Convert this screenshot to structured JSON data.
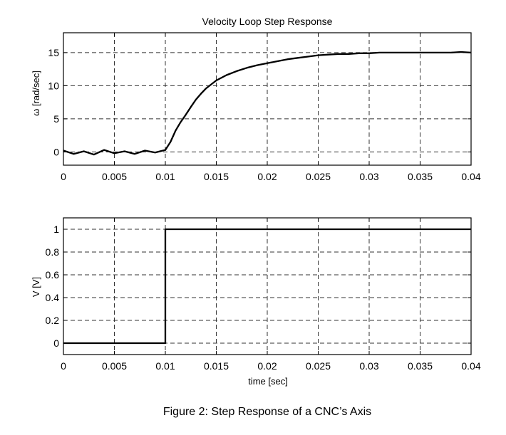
{
  "chart_data": [
    {
      "type": "line",
      "title": "Velocity Loop Step Response",
      "xlabel": "",
      "ylabel": "ω [rad/sec]",
      "xlim": [
        0,
        0.04
      ],
      "ylim": [
        -2,
        18
      ],
      "xticks": [
        0,
        0.005,
        0.01,
        0.015,
        0.02,
        0.025,
        0.03,
        0.035,
        0.04
      ],
      "xtick_labels": [
        "0",
        "0.005",
        "0.01",
        "0.015",
        "0.02",
        "0.025",
        "0.03",
        "0.035",
        "0.04"
      ],
      "yticks": [
        0,
        5,
        10,
        15
      ],
      "ytick_labels": [
        "0",
        "5",
        "10",
        "15"
      ],
      "grid": true,
      "series": [
        {
          "x": [
            0,
            0.001,
            0.002,
            0.003,
            0.004,
            0.005,
            0.006,
            0.007,
            0.008,
            0.009,
            0.01,
            0.0105,
            0.011,
            0.0115,
            0.012,
            0.0125,
            0.013,
            0.0135,
            0.014,
            0.0145,
            0.015,
            0.016,
            0.017,
            0.018,
            0.019,
            0.02,
            0.021,
            0.022,
            0.023,
            0.024,
            0.025,
            0.026,
            0.027,
            0.028,
            0.029,
            0.03,
            0.031,
            0.032,
            0.033,
            0.034,
            0.035,
            0.036,
            0.037,
            0.038,
            0.039,
            0.04
          ],
          "values": [
            0.2,
            -0.3,
            0.1,
            -0.4,
            0.3,
            -0.2,
            0.1,
            -0.3,
            0.2,
            -0.1,
            0.3,
            1.5,
            3.2,
            4.5,
            5.6,
            6.8,
            7.9,
            8.8,
            9.6,
            10.2,
            10.8,
            11.6,
            12.2,
            12.7,
            13.1,
            13.4,
            13.7,
            14.0,
            14.2,
            14.4,
            14.6,
            14.7,
            14.8,
            14.8,
            14.9,
            14.9,
            15.0,
            15.0,
            15.0,
            15.0,
            15.0,
            15.0,
            15.0,
            15.0,
            15.1,
            15.0
          ]
        }
      ]
    },
    {
      "type": "line",
      "title": "",
      "xlabel": "time [sec]",
      "ylabel": "V [V]",
      "xlim": [
        0,
        0.04
      ],
      "ylim": [
        -0.1,
        1.1
      ],
      "xticks": [
        0,
        0.005,
        0.01,
        0.015,
        0.02,
        0.025,
        0.03,
        0.035,
        0.04
      ],
      "xtick_labels": [
        "0",
        "0.005",
        "0.01",
        "0.015",
        "0.02",
        "0.025",
        "0.03",
        "0.035",
        "0.04"
      ],
      "yticks": [
        0,
        0.2,
        0.4,
        0.6,
        0.8,
        1
      ],
      "ytick_labels": [
        "0",
        "0.2",
        "0.4",
        "0.6",
        "0.8",
        "1"
      ],
      "grid": true,
      "series": [
        {
          "x": [
            0,
            0.01,
            0.01,
            0.04
          ],
          "values": [
            0,
            0,
            1,
            1
          ]
        }
      ]
    }
  ],
  "caption": "Figure 2: Step Response of a CNC’s Axis"
}
